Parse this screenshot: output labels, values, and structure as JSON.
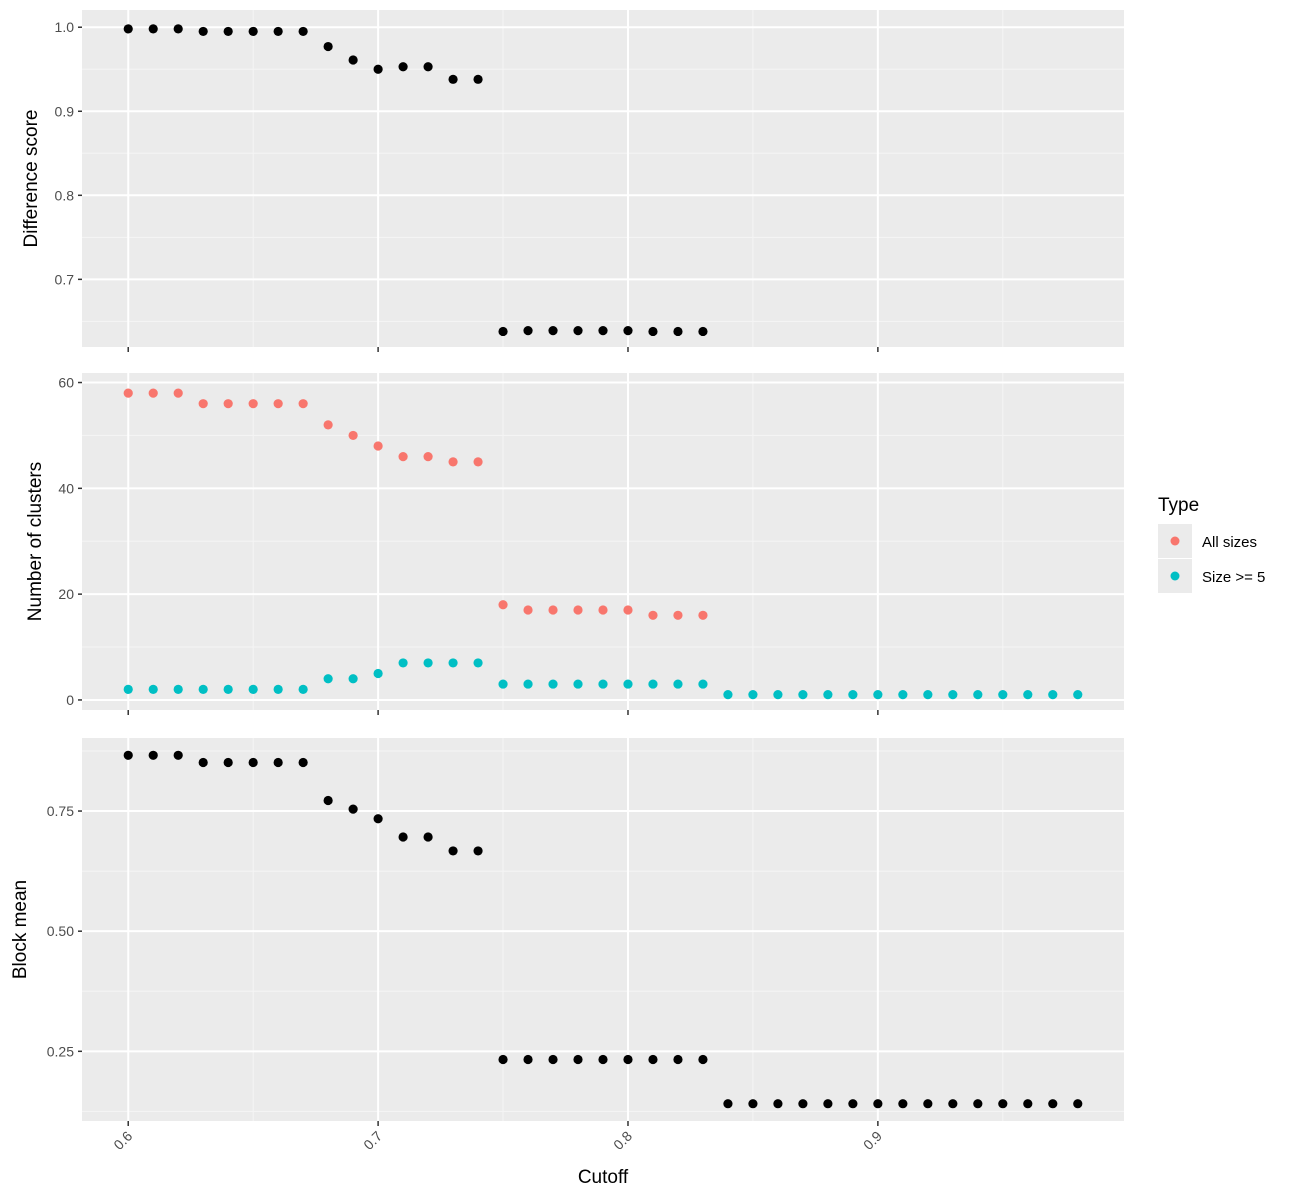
{
  "colors": {
    "panel_bg": "#ebebeb",
    "grid_major": "#ffffff",
    "grid_minor": "#f5f5f5",
    "tick": "#333333",
    "point_black": "#000000"
  },
  "x_axis": {
    "title": "Cutoff",
    "ticks": [
      0.6,
      0.7,
      0.8,
      0.9
    ],
    "tick_labels": [
      "0.6",
      "0.7",
      "0.8",
      "0.9"
    ],
    "xlim": [
      0.5815,
      0.9985
    ]
  },
  "legend": {
    "title": "Type",
    "items": [
      {
        "label": "All sizes",
        "color": "#f8766d"
      },
      {
        "label": "Size >= 5",
        "color": "#00bfc4"
      }
    ]
  },
  "chart_data": [
    {
      "type": "scatter",
      "panel": "top",
      "ylabel": "Difference score",
      "ylim": [
        0.6195,
        1.0205
      ],
      "y_ticks": [
        0.7,
        0.8,
        0.9,
        1.0
      ],
      "y_tick_labels": [
        "0.7",
        "0.8",
        "0.9",
        "1.0"
      ],
      "series": [
        {
          "color": "#000000",
          "x": [
            0.6,
            0.61,
            0.62,
            0.63,
            0.64,
            0.65,
            0.66,
            0.67,
            0.68,
            0.69,
            0.7,
            0.71,
            0.72,
            0.73,
            0.74,
            0.75,
            0.76,
            0.77,
            0.78,
            0.79,
            0.8,
            0.81,
            0.82,
            0.83
          ],
          "y": [
            0.998,
            0.998,
            0.998,
            0.995,
            0.995,
            0.995,
            0.995,
            0.995,
            0.977,
            0.961,
            0.95,
            0.953,
            0.953,
            0.938,
            0.938,
            0.638,
            0.639,
            0.639,
            0.639,
            0.639,
            0.639,
            0.638,
            0.638,
            0.638
          ]
        }
      ]
    },
    {
      "type": "scatter",
      "panel": "middle",
      "ylabel": "Number of clusters",
      "ylim": [
        -1.9,
        61.8
      ],
      "y_ticks": [
        0,
        20,
        40,
        60
      ],
      "y_tick_labels": [
        "0",
        "20",
        "40",
        "60"
      ],
      "series": [
        {
          "name": "All sizes",
          "color": "#f8766d",
          "x": [
            0.6,
            0.61,
            0.62,
            0.63,
            0.64,
            0.65,
            0.66,
            0.67,
            0.68,
            0.69,
            0.7,
            0.71,
            0.72,
            0.73,
            0.74,
            0.75,
            0.76,
            0.77,
            0.78,
            0.79,
            0.8,
            0.81,
            0.82,
            0.83
          ],
          "y": [
            58,
            58,
            58,
            56,
            56,
            56,
            56,
            56,
            52,
            50,
            48,
            46,
            46,
            45,
            45,
            18,
            17,
            17,
            17,
            17,
            17,
            16,
            16,
            16
          ]
        },
        {
          "name": "Size >= 5",
          "color": "#00bfc4",
          "x": [
            0.6,
            0.61,
            0.62,
            0.63,
            0.64,
            0.65,
            0.66,
            0.67,
            0.68,
            0.69,
            0.7,
            0.71,
            0.72,
            0.73,
            0.74,
            0.75,
            0.76,
            0.77,
            0.78,
            0.79,
            0.8,
            0.81,
            0.82,
            0.83,
            0.84,
            0.85,
            0.86,
            0.87,
            0.88,
            0.89,
            0.9,
            0.91,
            0.92,
            0.93,
            0.94,
            0.95,
            0.96,
            0.97,
            0.98
          ],
          "y": [
            2,
            2,
            2,
            2,
            2,
            2,
            2,
            2,
            4,
            4,
            5,
            7,
            7,
            7,
            7,
            3,
            3,
            3,
            3,
            3,
            3,
            3,
            3,
            3,
            1,
            1,
            1,
            1,
            1,
            1,
            1,
            1,
            1,
            1,
            1,
            1,
            1,
            1,
            1
          ]
        }
      ]
    },
    {
      "type": "scatter",
      "panel": "bottom",
      "ylabel": "Block mean",
      "ylim": [
        0.105,
        0.902
      ],
      "y_ticks": [
        0.25,
        0.5,
        0.75
      ],
      "y_tick_labels": [
        "0.25",
        "0.50",
        "0.75"
      ],
      "series": [
        {
          "color": "#000000",
          "x": [
            0.6,
            0.61,
            0.62,
            0.63,
            0.64,
            0.65,
            0.66,
            0.67,
            0.68,
            0.69,
            0.7,
            0.71,
            0.72,
            0.73,
            0.74,
            0.75,
            0.76,
            0.77,
            0.78,
            0.79,
            0.8,
            0.81,
            0.82,
            0.83,
            0.84,
            0.85,
            0.86,
            0.87,
            0.88,
            0.89,
            0.9,
            0.91,
            0.92,
            0.93,
            0.94,
            0.95,
            0.96,
            0.97,
            0.98
          ],
          "y": [
            0.866,
            0.866,
            0.866,
            0.851,
            0.851,
            0.851,
            0.851,
            0.851,
            0.772,
            0.754,
            0.734,
            0.696,
            0.696,
            0.667,
            0.667,
            0.233,
            0.233,
            0.233,
            0.233,
            0.233,
            0.233,
            0.233,
            0.233,
            0.233,
            0.141,
            0.141,
            0.141,
            0.141,
            0.141,
            0.141,
            0.141,
            0.141,
            0.141,
            0.141,
            0.141,
            0.141,
            0.141,
            0.141,
            0.141
          ]
        }
      ]
    }
  ]
}
